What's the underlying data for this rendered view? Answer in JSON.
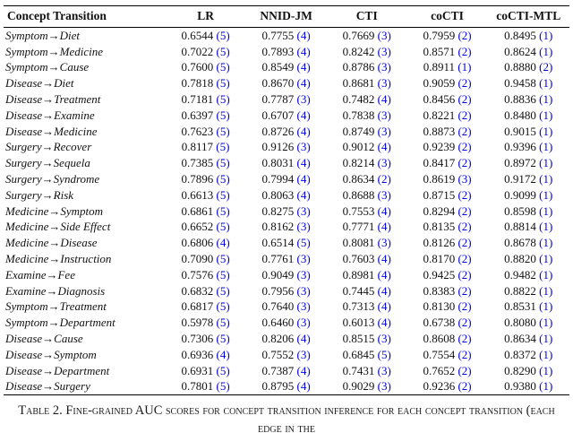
{
  "colors": {
    "rank_blue": "#0000dd"
  },
  "table": {
    "columns": [
      "Concept Transition",
      "LR",
      "NNID-JM",
      "CTI",
      "coCTI",
      "coCTI-MTL"
    ],
    "rows": [
      {
        "label": "Symptom→Diet",
        "cells": [
          [
            "0.6544",
            5
          ],
          [
            "0.7755",
            4
          ],
          [
            "0.7669",
            3
          ],
          [
            "0.7959",
            2
          ],
          [
            "0.8495",
            1
          ]
        ]
      },
      {
        "label": "Symptom→Medicine",
        "cells": [
          [
            "0.7022",
            5
          ],
          [
            "0.7893",
            4
          ],
          [
            "0.8242",
            3
          ],
          [
            "0.8571",
            2
          ],
          [
            "0.8624",
            1
          ]
        ]
      },
      {
        "label": "Symptom→Cause",
        "cells": [
          [
            "0.7600",
            5
          ],
          [
            "0.8549",
            4
          ],
          [
            "0.8786",
            3
          ],
          [
            "0.8911",
            1
          ],
          [
            "0.8880",
            2
          ]
        ]
      },
      {
        "label": "Disease→Diet",
        "cells": [
          [
            "0.7818",
            5
          ],
          [
            "0.8670",
            4
          ],
          [
            "0.8681",
            3
          ],
          [
            "0.9059",
            2
          ],
          [
            "0.9458",
            1
          ]
        ]
      },
      {
        "label": "Disease→Treatment",
        "cells": [
          [
            "0.7181",
            5
          ],
          [
            "0.7787",
            3
          ],
          [
            "0.7482",
            4
          ],
          [
            "0.8456",
            2
          ],
          [
            "0.8836",
            1
          ]
        ]
      },
      {
        "label": "Disease→Examine",
        "cells": [
          [
            "0.6397",
            5
          ],
          [
            "0.6707",
            4
          ],
          [
            "0.7838",
            3
          ],
          [
            "0.8221",
            2
          ],
          [
            "0.8480",
            1
          ]
        ]
      },
      {
        "label": "Disease→Medicine",
        "cells": [
          [
            "0.7623",
            5
          ],
          [
            "0.8726",
            4
          ],
          [
            "0.8749",
            3
          ],
          [
            "0.8873",
            2
          ],
          [
            "0.9015",
            1
          ]
        ]
      },
      {
        "label": "Surgery→Recover",
        "cells": [
          [
            "0.8117",
            5
          ],
          [
            "0.9126",
            3
          ],
          [
            "0.9012",
            4
          ],
          [
            "0.9239",
            2
          ],
          [
            "0.9396",
            1
          ]
        ]
      },
      {
        "label": "Surgery→Sequela",
        "cells": [
          [
            "0.7385",
            5
          ],
          [
            "0.8031",
            4
          ],
          [
            "0.8214",
            3
          ],
          [
            "0.8417",
            2
          ],
          [
            "0.8972",
            1
          ]
        ]
      },
      {
        "label": "Surgery→Syndrome",
        "cells": [
          [
            "0.7896",
            5
          ],
          [
            "0.7994",
            4
          ],
          [
            "0.8634",
            2
          ],
          [
            "0.8619",
            3
          ],
          [
            "0.9172",
            1
          ]
        ]
      },
      {
        "label": "Surgery→Risk",
        "cells": [
          [
            "0.6613",
            5
          ],
          [
            "0.8063",
            4
          ],
          [
            "0.8688",
            3
          ],
          [
            "0.8715",
            2
          ],
          [
            "0.9099",
            1
          ]
        ]
      },
      {
        "label": "Medicine→Symptom",
        "cells": [
          [
            "0.6861",
            5
          ],
          [
            "0.8275",
            3
          ],
          [
            "0.7553",
            4
          ],
          [
            "0.8294",
            2
          ],
          [
            "0.8598",
            1
          ]
        ]
      },
      {
        "label": "Medicine→Side Effect",
        "cells": [
          [
            "0.6652",
            5
          ],
          [
            "0.8162",
            3
          ],
          [
            "0.7771",
            4
          ],
          [
            "0.8135",
            2
          ],
          [
            "0.8814",
            1
          ]
        ]
      },
      {
        "label": "Medicine→Disease",
        "cells": [
          [
            "0.6806",
            4
          ],
          [
            "0.6514",
            5
          ],
          [
            "0.8081",
            3
          ],
          [
            "0.8126",
            2
          ],
          [
            "0.8678",
            1
          ]
        ]
      },
      {
        "label": "Medicine→Instruction",
        "cells": [
          [
            "0.7090",
            5
          ],
          [
            "0.7761",
            3
          ],
          [
            "0.7603",
            4
          ],
          [
            "0.8170",
            2
          ],
          [
            "0.8820",
            1
          ]
        ]
      },
      {
        "label": "Examine→Fee",
        "cells": [
          [
            "0.7576",
            5
          ],
          [
            "0.9049",
            3
          ],
          [
            "0.8981",
            4
          ],
          [
            "0.9425",
            2
          ],
          [
            "0.9482",
            1
          ]
        ]
      },
      {
        "label": "Examine→Diagnosis",
        "cells": [
          [
            "0.6832",
            5
          ],
          [
            "0.7956",
            3
          ],
          [
            "0.7445",
            4
          ],
          [
            "0.8383",
            2
          ],
          [
            "0.8822",
            1
          ]
        ]
      },
      {
        "label": "Symptom→Treatment",
        "cells": [
          [
            "0.6817",
            5
          ],
          [
            "0.7640",
            3
          ],
          [
            "0.7313",
            4
          ],
          [
            "0.8130",
            2
          ],
          [
            "0.8531",
            1
          ]
        ]
      },
      {
        "label": "Symptom→Department",
        "cells": [
          [
            "0.5978",
            5
          ],
          [
            "0.6460",
            3
          ],
          [
            "0.6013",
            4
          ],
          [
            "0.6738",
            2
          ],
          [
            "0.8080",
            1
          ]
        ]
      },
      {
        "label": "Disease→Cause",
        "cells": [
          [
            "0.7306",
            5
          ],
          [
            "0.8206",
            4
          ],
          [
            "0.8515",
            3
          ],
          [
            "0.8608",
            2
          ],
          [
            "0.8634",
            1
          ]
        ]
      },
      {
        "label": "Disease→Symptom",
        "cells": [
          [
            "0.6936",
            4
          ],
          [
            "0.7552",
            3
          ],
          [
            "0.6845",
            5
          ],
          [
            "0.7554",
            2
          ],
          [
            "0.8372",
            1
          ]
        ]
      },
      {
        "label": "Disease→Department",
        "cells": [
          [
            "0.6931",
            5
          ],
          [
            "0.7387",
            4
          ],
          [
            "0.7431",
            3
          ],
          [
            "0.7652",
            2
          ],
          [
            "0.8290",
            1
          ]
        ]
      },
      {
        "label": "Disease→Surgery",
        "cells": [
          [
            "0.7801",
            5
          ],
          [
            "0.8795",
            4
          ],
          [
            "0.9029",
            3
          ],
          [
            "0.9236",
            2
          ],
          [
            "0.9380",
            1
          ]
        ]
      }
    ]
  },
  "caption": {
    "text": "Table 2. Fine-grained AUC scores for concept transition inference for each concept transition (each edge in the"
  }
}
